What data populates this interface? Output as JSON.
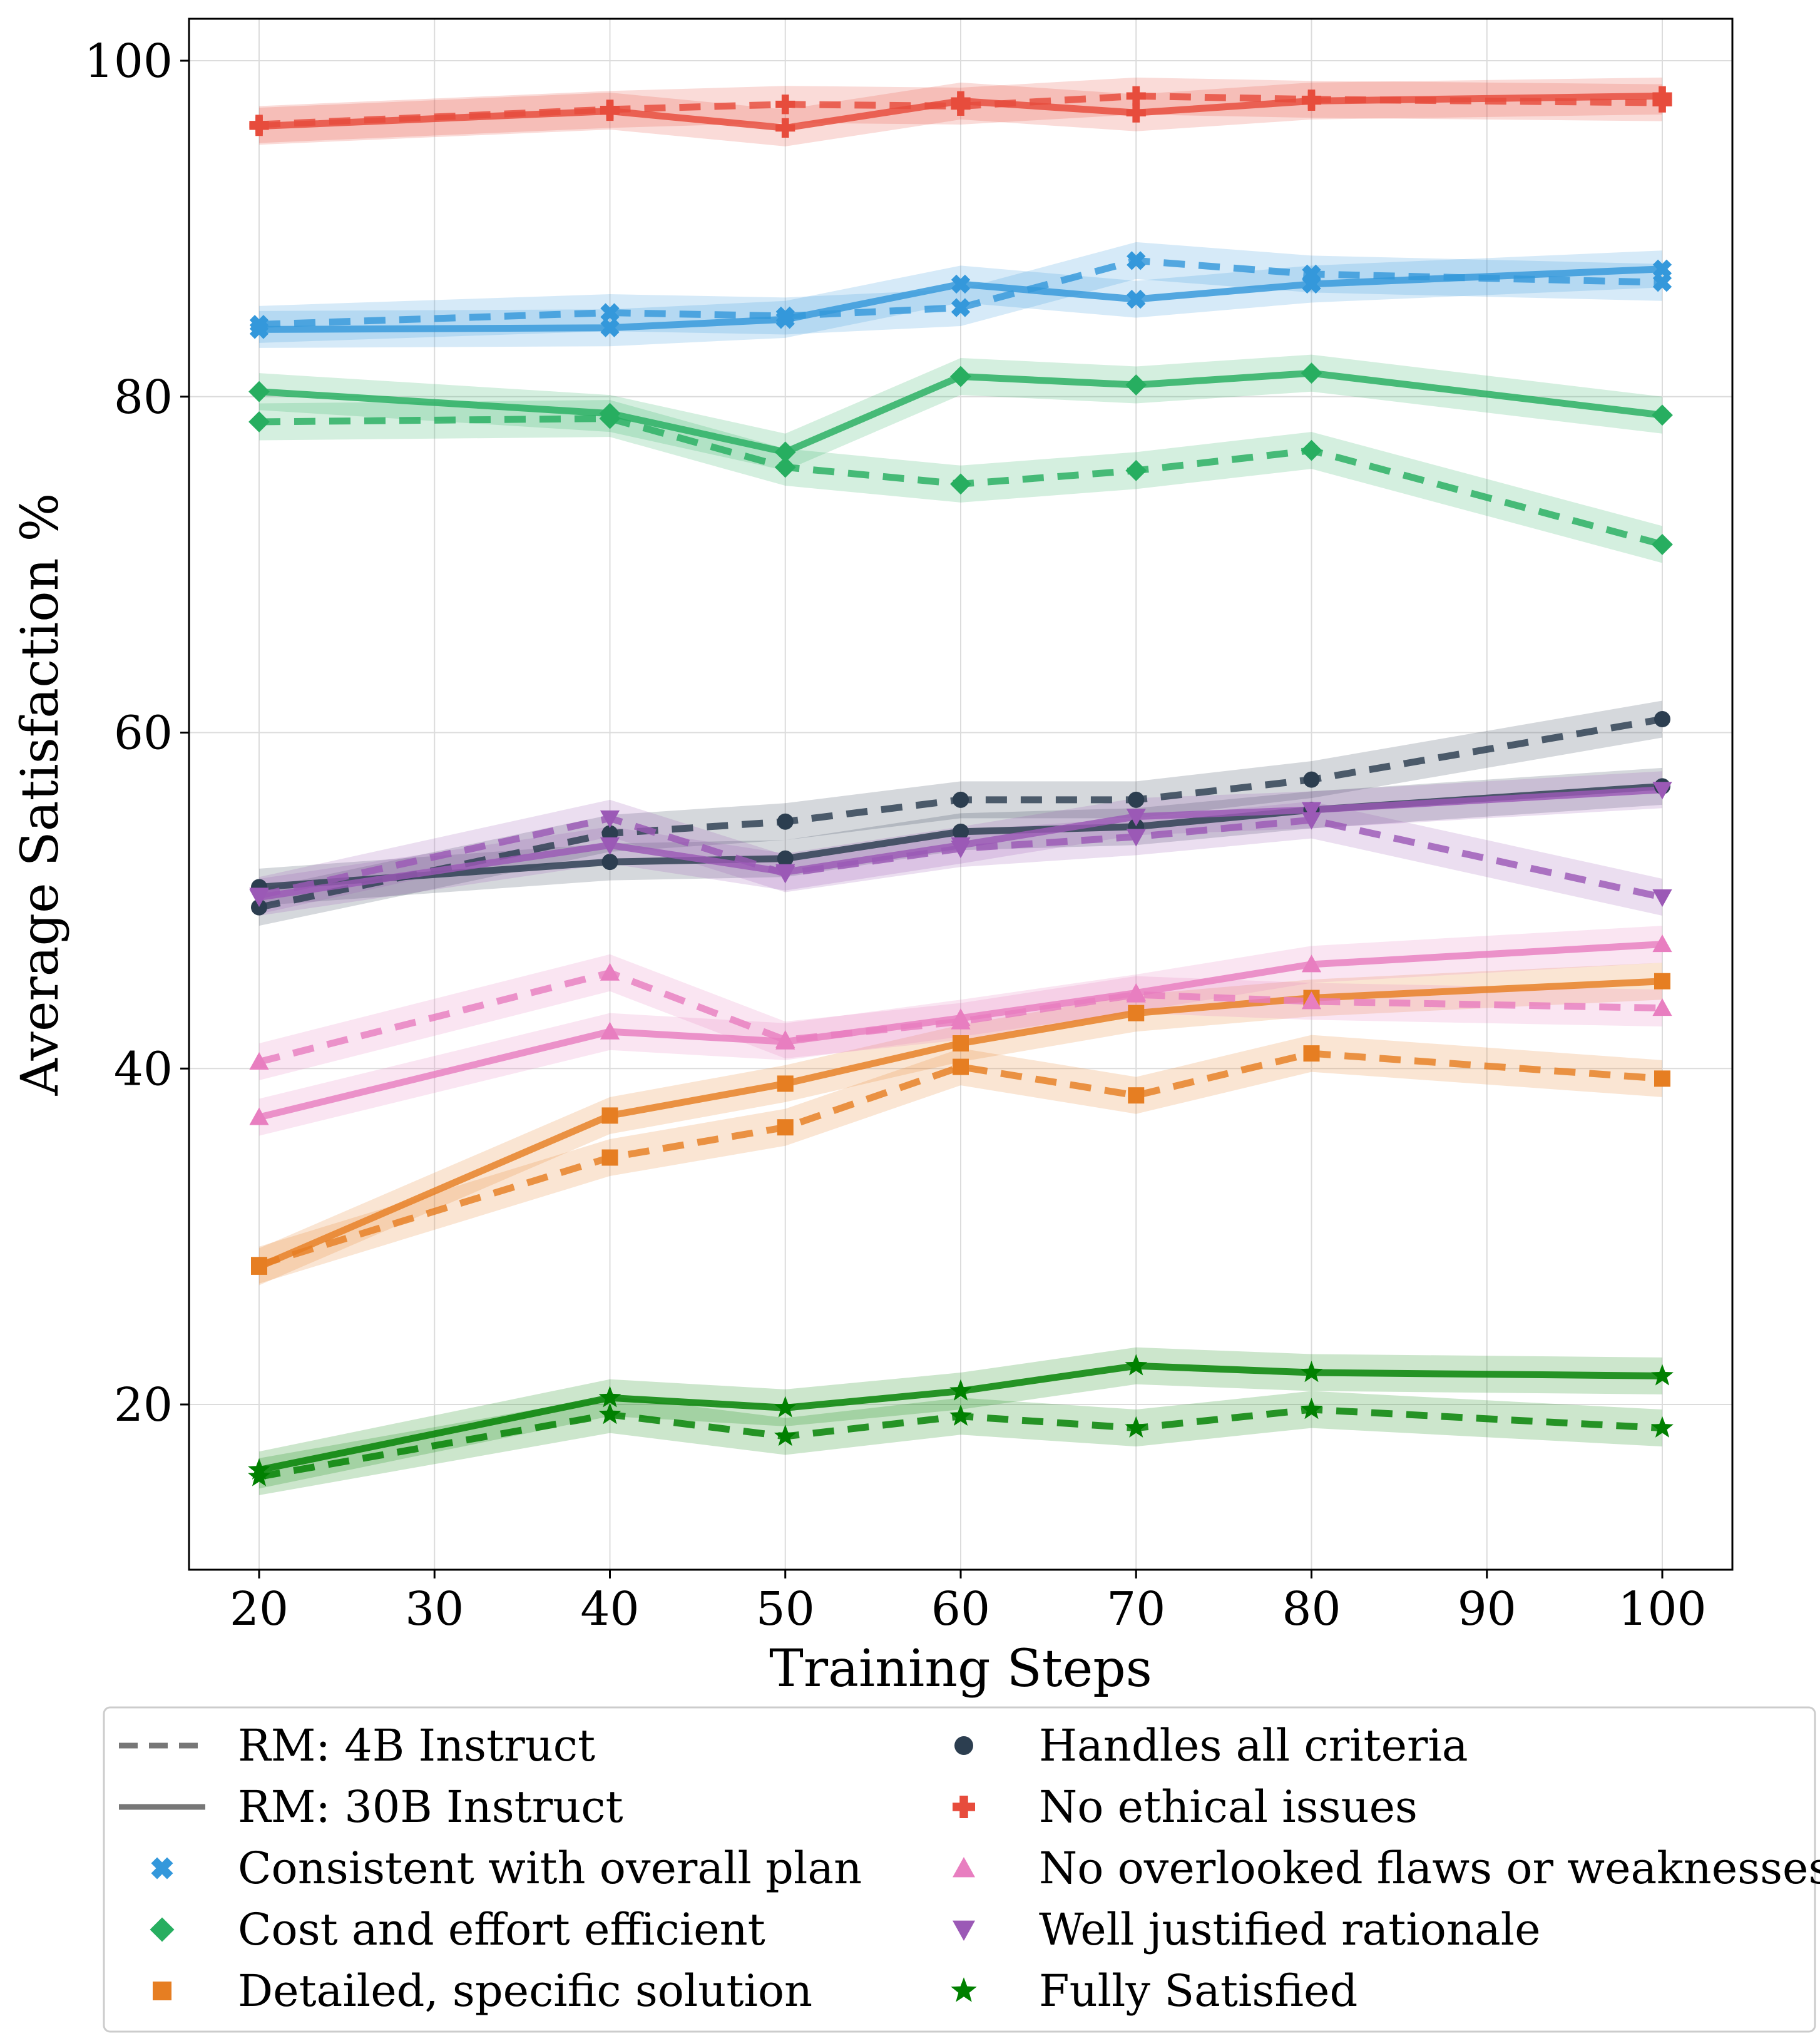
{
  "chart_data": {
    "type": "line",
    "xlabel": "Training Steps",
    "ylabel": "Average Satisfaction %",
    "xlim": [
      16,
      104
    ],
    "ylim": [
      10.5,
      102.5
    ],
    "xticks": [
      20,
      30,
      40,
      50,
      60,
      70,
      80,
      90,
      100
    ],
    "yticks": [
      20,
      40,
      60,
      80,
      100
    ],
    "grid": true,
    "legend_position": "bottom",
    "x": [
      20,
      40,
      50,
      60,
      70,
      80,
      100
    ],
    "legend": {
      "style_entries": [
        {
          "label": "RM: 4B Instruct",
          "style": "dashed"
        },
        {
          "label": "RM: 30B Instruct",
          "style": "solid"
        }
      ]
    },
    "series": [
      {
        "name": "Consistent with overall plan",
        "marker": "x",
        "color": "#3498db",
        "rm_4b": [
          84.3,
          85.0,
          84.8,
          85.3,
          88.1,
          87.3,
          86.8
        ],
        "rm_30b": [
          84.0,
          84.1,
          84.6,
          86.7,
          85.8,
          86.7,
          87.6
        ]
      },
      {
        "name": "Cost and effort efficient",
        "marker": "diamond",
        "color": "#27ae60",
        "rm_4b": [
          78.5,
          78.7,
          75.8,
          74.8,
          75.6,
          76.8,
          71.2
        ],
        "rm_30b": [
          80.3,
          79.0,
          76.7,
          81.2,
          80.7,
          81.4,
          78.9
        ]
      },
      {
        "name": "Detailed, specific solution",
        "marker": "square",
        "color": "#e67e22",
        "rm_4b": [
          28.3,
          34.7,
          36.5,
          40.1,
          38.4,
          40.9,
          39.4
        ],
        "rm_30b": [
          28.2,
          37.2,
          39.1,
          41.5,
          43.3,
          44.2,
          45.2
        ]
      },
      {
        "name": "Handles all criteria",
        "marker": "circle",
        "color": "#2c3e50",
        "rm_4b": [
          49.6,
          54.0,
          54.7,
          56.0,
          56.0,
          57.2,
          60.8
        ],
        "rm_30b": [
          50.8,
          52.3,
          52.5,
          54.1,
          54.4,
          55.4,
          56.8
        ]
      },
      {
        "name": "No ethical issues",
        "marker": "plus",
        "color": "#e74c3c",
        "rm_4b": [
          96.2,
          97.1,
          97.4,
          97.3,
          97.9,
          97.7,
          97.5
        ],
        "rm_30b": [
          96.1,
          97.0,
          96.0,
          97.6,
          96.9,
          97.6,
          97.9
        ]
      },
      {
        "name": "No overlooked flaws or weaknesses",
        "marker": "triangle-up",
        "color": "#e87ec0",
        "rm_4b": [
          40.4,
          45.7,
          41.7,
          42.8,
          44.4,
          44.0,
          43.6
        ],
        "rm_30b": [
          37.1,
          42.2,
          41.6,
          43.0,
          44.5,
          46.2,
          47.4
        ]
      },
      {
        "name": "Well justified rationale",
        "marker": "triangle-down",
        "color": "#9b59b6",
        "rm_4b": [
          50.3,
          54.9,
          51.6,
          53.1,
          53.8,
          54.8,
          50.2
        ],
        "rm_30b": [
          50.2,
          53.3,
          51.7,
          53.3,
          55.0,
          55.4,
          56.6
        ]
      },
      {
        "name": "Fully Satisfied",
        "marker": "star",
        "color": "#008000",
        "rm_4b": [
          15.7,
          19.4,
          18.1,
          19.3,
          18.6,
          19.7,
          18.6
        ],
        "rm_30b": [
          16.1,
          20.4,
          19.8,
          20.8,
          22.3,
          21.9,
          21.7
        ]
      }
    ]
  }
}
